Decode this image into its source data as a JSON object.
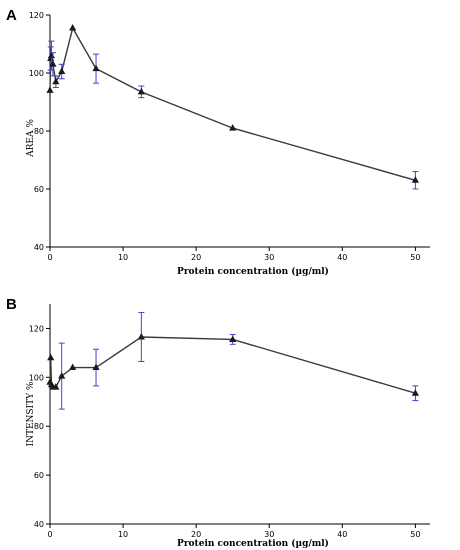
{
  "chart_data": [
    {
      "type": "line",
      "panel_label": "A",
      "xlabel": "Protein concentration (µg/ml)",
      "ylabel": "AREA %",
      "xlim": [
        0,
        52
      ],
      "ylim": [
        40,
        120
      ],
      "xticks": [
        0,
        10,
        20,
        30,
        40,
        50
      ],
      "yticks": [
        40,
        60,
        80,
        100,
        120
      ],
      "grid": false,
      "series": [
        {
          "x": [
            0.0,
            0.1,
            0.2,
            0.4,
            0.8,
            1.6,
            3.1,
            6.3,
            12.5,
            25,
            50
          ],
          "y": [
            94,
            105,
            106,
            103,
            97,
            100.5,
            115.5,
            101.5,
            93.5,
            81,
            63
          ],
          "err": [
            0,
            4,
            5,
            4,
            2,
            2.5,
            0,
            5,
            2,
            0,
            3
          ]
        }
      ]
    },
    {
      "type": "line",
      "panel_label": "B",
      "xlabel": "Protein concentration (µg/ml)",
      "ylabel": "INTENSITY %",
      "xlim": [
        0,
        52
      ],
      "ylim": [
        40,
        130
      ],
      "xticks": [
        0,
        10,
        20,
        30,
        40,
        50
      ],
      "yticks": [
        40,
        60,
        80,
        100,
        120
      ],
      "grid": false,
      "series": [
        {
          "x": [
            0.0,
            0.1,
            0.2,
            0.4,
            0.8,
            1.6,
            3.1,
            6.3,
            12.5,
            25,
            50
          ],
          "y": [
            98,
            108,
            97,
            96,
            96,
            100.5,
            104,
            104,
            116.5,
            115.5,
            93.5
          ],
          "err": [
            0,
            0,
            0,
            0,
            0,
            13.5,
            0,
            7.5,
            10,
            2,
            3
          ]
        }
      ]
    }
  ]
}
